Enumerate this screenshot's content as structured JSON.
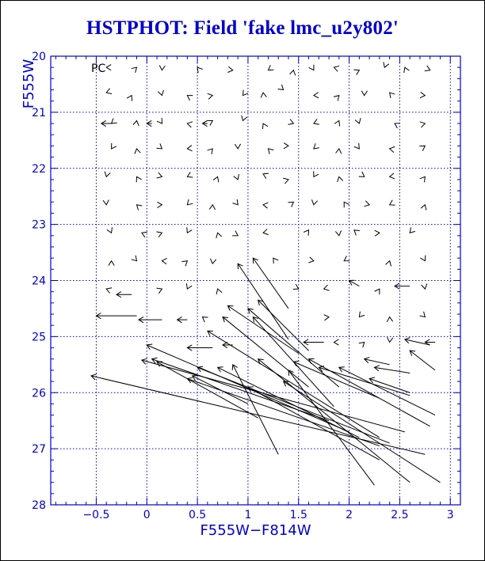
{
  "chart_data": {
    "type": "vector",
    "title": "HSTPHOT: Field 'fake lmc_u2y802'",
    "xlabel": "F555W−F814W",
    "ylabel": "F555W",
    "annotation": "PC",
    "xlim": [
      -0.95,
      3.1
    ],
    "ylim": [
      28,
      20
    ],
    "x_ticks": [
      -0.5,
      0,
      0.5,
      1,
      1.5,
      2,
      2.5,
      3
    ],
    "x_tick_labels": [
      "−0.5",
      "0",
      "0.5",
      "1",
      "1.5",
      "2",
      "2.5",
      "3"
    ],
    "x_gridlines": [
      -0.5,
      0,
      0.5,
      1,
      1.5,
      2,
      2.5,
      3
    ],
    "y_ticks": [
      20,
      21,
      22,
      23,
      24,
      25,
      26,
      27,
      28
    ],
    "y_tick_labels": [
      "20",
      "21",
      "22",
      "23",
      "24",
      "25",
      "26",
      "27",
      "28"
    ],
    "y_gridlines": [
      21,
      22,
      23,
      24,
      25,
      26,
      27
    ],
    "grid": true,
    "arrow_color": "#000000",
    "axis_color": "#0000cc",
    "title_color": "#0000cc",
    "arrows": [
      {
        "x0": -0.45,
        "y0": 21.2,
        "x1": -0.35,
        "y1": 21.2
      },
      {
        "x0": 0.0,
        "y0": 21.2,
        "x1": 0.05,
        "y1": 21.2
      },
      {
        "x0": 0.55,
        "y0": 21.2,
        "x1": 0.6,
        "y1": 21.2
      },
      {
        "x0": 0.9,
        "y0": 23.7,
        "x1": 1.4,
        "y1": 25.05
      },
      {
        "x0": 1.05,
        "y0": 23.6,
        "x1": 1.4,
        "y1": 24.5
      },
      {
        "x0": 1.1,
        "y0": 24.35,
        "x1": 1.6,
        "y1": 25.25
      },
      {
        "x0": 2.0,
        "y0": 24.0,
        "x1": 2.1,
        "y1": 24.1
      },
      {
        "x0": 2.45,
        "y0": 24.1,
        "x1": 2.6,
        "y1": 24.1
      },
      {
        "x0": -0.5,
        "y0": 24.63,
        "x1": -0.1,
        "y1": 24.63
      },
      {
        "x0": -0.3,
        "y0": 24.25,
        "x1": -0.15,
        "y1": 24.25
      },
      {
        "x0": -0.08,
        "y0": 24.7,
        "x1": 0.15,
        "y1": 24.7
      },
      {
        "x0": 0.3,
        "y0": 24.7,
        "x1": 0.4,
        "y1": 24.7
      },
      {
        "x0": 0.8,
        "y0": 24.45,
        "x1": 1.5,
        "y1": 25.3
      },
      {
        "x0": 0.75,
        "y0": 24.65,
        "x1": 1.6,
        "y1": 25.9
      },
      {
        "x0": 1.0,
        "y0": 24.5,
        "x1": 1.9,
        "y1": 25.9
      },
      {
        "x0": 1.05,
        "y0": 24.65,
        "x1": 1.85,
        "y1": 26.25
      },
      {
        "x0": 0.6,
        "y0": 24.9,
        "x1": 2.3,
        "y1": 26.8
      },
      {
        "x0": 0.0,
        "y0": 25.15,
        "x1": 2.0,
        "y1": 26.7
      },
      {
        "x0": 0.4,
        "y0": 25.2,
        "x1": 0.65,
        "y1": 25.2
      },
      {
        "x0": 0.75,
        "y0": 25.15,
        "x1": 0.85,
        "y1": 25.15
      },
      {
        "x0": 1.55,
        "y0": 25.1,
        "x1": 1.75,
        "y1": 25.1
      },
      {
        "x0": 2.55,
        "y0": 25.05,
        "x1": 2.8,
        "y1": 25.15
      },
      {
        "x0": 2.75,
        "y0": 25.1,
        "x1": 2.85,
        "y1": 25.1
      },
      {
        "x0": 2.6,
        "y0": 25.25,
        "x1": 2.85,
        "y1": 25.6
      },
      {
        "x0": -0.05,
        "y0": 25.42,
        "x1": 2.55,
        "y1": 26.7
      },
      {
        "x0": 0.05,
        "y0": 25.4,
        "x1": 1.8,
        "y1": 26.5
      },
      {
        "x0": 0.1,
        "y0": 25.45,
        "x1": 1.1,
        "y1": 26.45
      },
      {
        "x0": 0.5,
        "y0": 25.55,
        "x1": 2.4,
        "y1": 26.9
      },
      {
        "x0": 0.4,
        "y0": 25.75,
        "x1": 2.3,
        "y1": 26.95
      },
      {
        "x0": 0.7,
        "y0": 25.55,
        "x1": 2.1,
        "y1": 26.8
      },
      {
        "x0": 0.85,
        "y0": 25.5,
        "x1": 1.3,
        "y1": 27.1
      },
      {
        "x0": 1.1,
        "y0": 25.4,
        "x1": 2.6,
        "y1": 27.6
      },
      {
        "x0": 1.4,
        "y0": 25.6,
        "x1": 2.25,
        "y1": 27.65
      },
      {
        "x0": 1.45,
        "y0": 25.45,
        "x1": 2.3,
        "y1": 26.1
      },
      {
        "x0": 1.6,
        "y0": 25.4,
        "x1": 2.8,
        "y1": 26.6
      },
      {
        "x0": 1.7,
        "y0": 25.55,
        "x1": 2.6,
        "y1": 26.05
      },
      {
        "x0": 1.9,
        "y0": 25.55,
        "x1": 2.85,
        "y1": 26.4
      },
      {
        "x0": 2.15,
        "y0": 25.4,
        "x1": 2.4,
        "y1": 25.5
      },
      {
        "x0": 2.25,
        "y0": 25.55,
        "x1": 2.6,
        "y1": 25.65
      },
      {
        "x0": 2.2,
        "y0": 25.75,
        "x1": 2.6,
        "y1": 26.0
      },
      {
        "x0": 1.35,
        "y0": 25.8,
        "x1": 2.9,
        "y1": 27.6
      },
      {
        "x0": -0.55,
        "y0": 25.7,
        "x1": 2.75,
        "y1": 27.1
      },
      {
        "x0": 0.45,
        "y0": 25.7,
        "x1": 1.0,
        "y1": 26.2
      },
      {
        "x0": 1.0,
        "y0": 25.9,
        "x1": 2.3,
        "y1": 27.2
      }
    ],
    "markers": [
      {
        "x": -0.4,
        "y": 20.2
      },
      {
        "x": -0.1,
        "y": 20.2
      },
      {
        "x": 0.15,
        "y": 20.25
      },
      {
        "x": 0.5,
        "y": 20.2
      },
      {
        "x": 0.85,
        "y": 20.25
      },
      {
        "x": 1.2,
        "y": 20.25
      },
      {
        "x": 1.45,
        "y": 20.25
      },
      {
        "x": 1.65,
        "y": 20.25
      },
      {
        "x": 1.85,
        "y": 20.2
      },
      {
        "x": 2.1,
        "y": 20.25
      },
      {
        "x": 2.35,
        "y": 20.2
      },
      {
        "x": 2.55,
        "y": 20.2
      },
      {
        "x": 2.8,
        "y": 20.25
      },
      {
        "x": -0.4,
        "y": 20.65
      },
      {
        "x": -0.15,
        "y": 20.7
      },
      {
        "x": 0.15,
        "y": 20.7
      },
      {
        "x": 0.4,
        "y": 20.7
      },
      {
        "x": 0.65,
        "y": 20.7
      },
      {
        "x": 0.95,
        "y": 20.7
      },
      {
        "x": 1.15,
        "y": 20.65
      },
      {
        "x": 1.35,
        "y": 20.6
      },
      {
        "x": 1.65,
        "y": 20.7
      },
      {
        "x": 1.9,
        "y": 20.7
      },
      {
        "x": 2.15,
        "y": 20.7
      },
      {
        "x": 2.4,
        "y": 20.65
      },
      {
        "x": 2.75,
        "y": 20.7
      },
      {
        "x": -0.35,
        "y": 21.2
      },
      {
        "x": -0.1,
        "y": 21.15
      },
      {
        "x": 0.15,
        "y": 21.2
      },
      {
        "x": 0.4,
        "y": 21.2
      },
      {
        "x": 0.65,
        "y": 21.15
      },
      {
        "x": 0.95,
        "y": 21.15
      },
      {
        "x": 1.15,
        "y": 21.2
      },
      {
        "x": 1.45,
        "y": 21.2
      },
      {
        "x": 1.65,
        "y": 21.2
      },
      {
        "x": 1.9,
        "y": 21.15
      },
      {
        "x": 2.1,
        "y": 21.2
      },
      {
        "x": 2.45,
        "y": 21.2
      },
      {
        "x": 2.75,
        "y": 21.2
      },
      {
        "x": -0.35,
        "y": 21.65
      },
      {
        "x": -0.1,
        "y": 21.65
      },
      {
        "x": 0.15,
        "y": 21.65
      },
      {
        "x": 0.4,
        "y": 21.65
      },
      {
        "x": 0.65,
        "y": 21.65
      },
      {
        "x": 0.9,
        "y": 21.65
      },
      {
        "x": 1.2,
        "y": 21.65
      },
      {
        "x": 1.4,
        "y": 21.6
      },
      {
        "x": 1.65,
        "y": 21.65
      },
      {
        "x": 1.9,
        "y": 21.65
      },
      {
        "x": 2.1,
        "y": 21.65
      },
      {
        "x": 2.4,
        "y": 21.65
      },
      {
        "x": 2.75,
        "y": 21.6
      },
      {
        "x": -0.4,
        "y": 22.15
      },
      {
        "x": -0.1,
        "y": 22.15
      },
      {
        "x": 0.15,
        "y": 22.15
      },
      {
        "x": 0.4,
        "y": 22.15
      },
      {
        "x": 0.7,
        "y": 22.15
      },
      {
        "x": 0.9,
        "y": 22.2
      },
      {
        "x": 1.15,
        "y": 22.1
      },
      {
        "x": 1.4,
        "y": 22.2
      },
      {
        "x": 1.65,
        "y": 22.15
      },
      {
        "x": 1.9,
        "y": 22.15
      },
      {
        "x": 2.15,
        "y": 22.15
      },
      {
        "x": 2.4,
        "y": 22.15
      },
      {
        "x": 2.75,
        "y": 22.15
      },
      {
        "x": -0.4,
        "y": 22.65
      },
      {
        "x": -0.1,
        "y": 22.65
      },
      {
        "x": 0.15,
        "y": 22.65
      },
      {
        "x": 0.4,
        "y": 22.65
      },
      {
        "x": 0.65,
        "y": 22.65
      },
      {
        "x": 0.9,
        "y": 22.65
      },
      {
        "x": 1.15,
        "y": 22.65
      },
      {
        "x": 1.45,
        "y": 22.6
      },
      {
        "x": 1.65,
        "y": 22.65
      },
      {
        "x": 1.95,
        "y": 22.6
      },
      {
        "x": 2.2,
        "y": 22.65
      },
      {
        "x": 2.4,
        "y": 22.65
      },
      {
        "x": 2.75,
        "y": 22.65
      },
      {
        "x": -0.35,
        "y": 23.15
      },
      {
        "x": -0.05,
        "y": 23.15
      },
      {
        "x": 0.15,
        "y": 23.15
      },
      {
        "x": 0.4,
        "y": 23.15
      },
      {
        "x": 0.7,
        "y": 23.15
      },
      {
        "x": 0.9,
        "y": 23.2
      },
      {
        "x": 1.15,
        "y": 23.15
      },
      {
        "x": 1.6,
        "y": 23.1
      },
      {
        "x": 1.9,
        "y": 23.2
      },
      {
        "x": 2.05,
        "y": 23.1
      },
      {
        "x": 2.3,
        "y": 23.15
      },
      {
        "x": 2.6,
        "y": 23.15
      },
      {
        "x": -0.35,
        "y": 23.65
      },
      {
        "x": -0.1,
        "y": 23.65
      },
      {
        "x": 0.15,
        "y": 23.65
      },
      {
        "x": 0.4,
        "y": 23.65
      },
      {
        "x": 0.65,
        "y": 23.7
      },
      {
        "x": 1.25,
        "y": 23.6
      },
      {
        "x": 1.65,
        "y": 23.65
      },
      {
        "x": 1.95,
        "y": 23.65
      },
      {
        "x": 2.4,
        "y": 23.65
      },
      {
        "x": 2.75,
        "y": 23.65
      },
      {
        "x": -0.4,
        "y": 24.15
      },
      {
        "x": 0.15,
        "y": 24.15
      },
      {
        "x": 0.4,
        "y": 24.15
      },
      {
        "x": 0.7,
        "y": 24.15
      },
      {
        "x": 1.5,
        "y": 24.15
      },
      {
        "x": 1.75,
        "y": 24.15
      },
      {
        "x": 2.3,
        "y": 24.15
      },
      {
        "x": 2.75,
        "y": 24.15
      },
      {
        "x": 0.55,
        "y": 24.65
      },
      {
        "x": 1.8,
        "y": 24.65
      },
      {
        "x": 2.1,
        "y": 24.65
      },
      {
        "x": 2.4,
        "y": 24.65
      },
      {
        "x": 2.75,
        "y": 24.65
      },
      {
        "x": 1.85,
        "y": 25.1
      },
      {
        "x": 2.15,
        "y": 25.1
      },
      {
        "x": 2.4,
        "y": 25.1
      }
    ]
  }
}
